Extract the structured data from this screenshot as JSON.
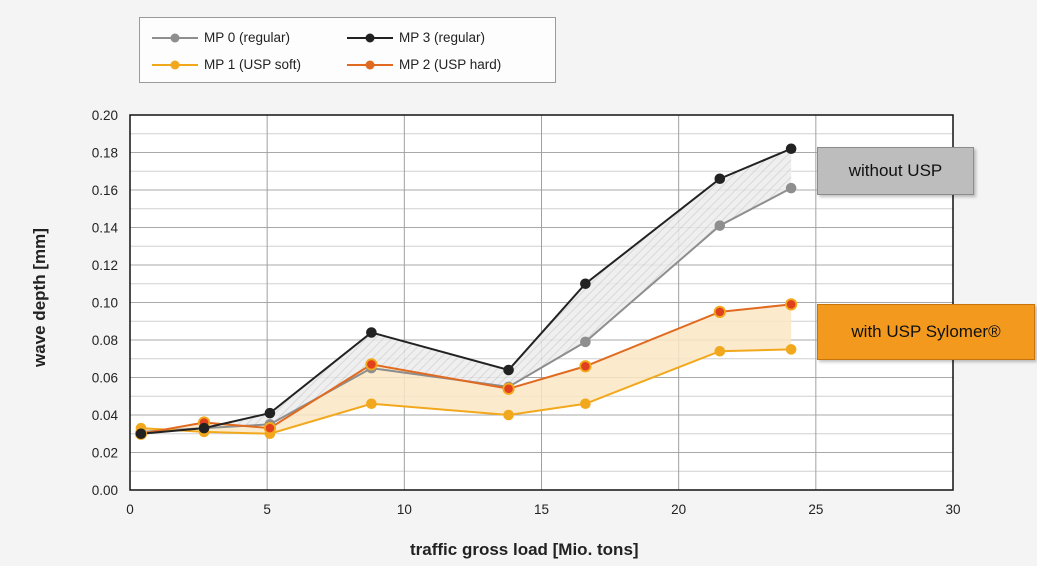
{
  "chart_data": {
    "type": "line",
    "xlabel": "traffic gross load [Mio. tons]",
    "ylabel": "wave depth  [mm]",
    "xlim": [
      0,
      30
    ],
    "ylim": [
      0,
      0.2
    ],
    "xticks": [
      "0",
      "5",
      "10",
      "15",
      "20",
      "25",
      "30"
    ],
    "yticks": [
      "0.00",
      "0.02",
      "0.04",
      "0.06",
      "0.08",
      "0.10",
      "0.12",
      "0.14",
      "0.16",
      "0.18",
      "0.20"
    ],
    "grid": "on",
    "legend_position": "top-left",
    "x": [
      0.4,
      2.7,
      5.1,
      8.8,
      13.8,
      16.6,
      21.5,
      24.1
    ],
    "series": [
      {
        "name": "MP 0 (regular)",
        "color": "#8e8e8e",
        "values": [
          0.031,
          0.033,
          0.035,
          0.065,
          0.055,
          0.079,
          0.141,
          0.161
        ]
      },
      {
        "name": "MP 3 (regular)",
        "color": "#222222",
        "values": [
          0.03,
          0.033,
          0.041,
          0.084,
          0.064,
          0.11,
          0.166,
          0.182
        ]
      },
      {
        "name": "MP 1 (USP soft)",
        "color": "#f2a81c",
        "values": [
          0.033,
          0.031,
          0.03,
          0.046,
          0.04,
          0.046,
          0.074,
          0.075
        ]
      },
      {
        "name": "MP 2 (USP hard)",
        "color": "#e06a20",
        "values": [
          0.03,
          0.036,
          0.033,
          0.067,
          0.054,
          0.066,
          0.095,
          0.099
        ]
      }
    ],
    "annotations": [
      "without USP",
      "with USP Sylomer®"
    ]
  }
}
